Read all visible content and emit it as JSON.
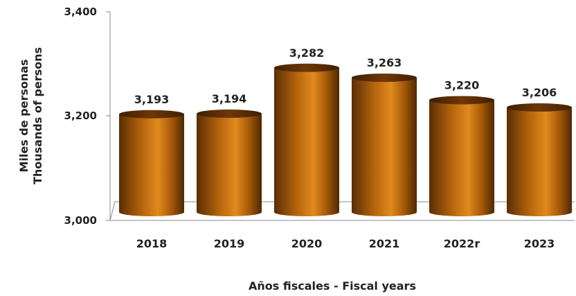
{
  "chart_data": {
    "type": "bar",
    "style": "cylinder",
    "categories": [
      "2018",
      "2019",
      "2020",
      "2021",
      "2022r",
      "2023"
    ],
    "values": [
      3193,
      3194,
      3282,
      3263,
      3220,
      3206
    ],
    "value_labels": [
      "3,193",
      "3,194",
      "3,282",
      "3,263",
      "3,220",
      "3,206"
    ],
    "xlabel": "Años fiscales - Fiscal years",
    "ylabel_lines": [
      "Miles de personas",
      "Thousands of persons"
    ],
    "ylim": [
      3000,
      3400
    ],
    "yticks": [
      3000,
      3200,
      3400
    ],
    "ytick_labels": [
      "3,000",
      "3,200",
      "3,400"
    ],
    "grid": false,
    "legend": "none",
    "bar_color": "#b5650c"
  }
}
